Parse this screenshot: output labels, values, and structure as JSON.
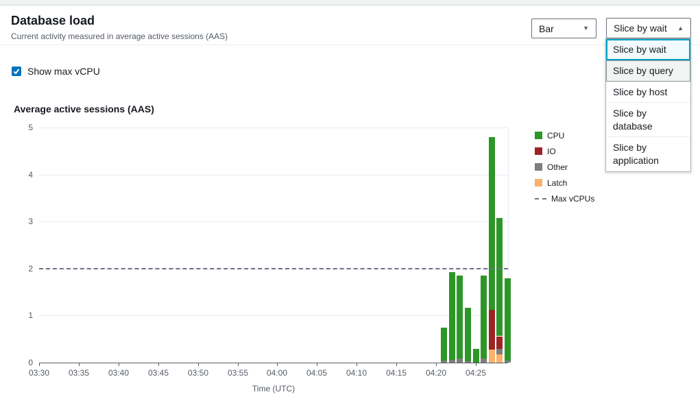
{
  "header": {
    "title": "Database load",
    "subtitle": "Current activity measured in average active sessions (AAS)"
  },
  "controls": {
    "chart_type_select": {
      "value": "Bar",
      "arrow": "down"
    },
    "slice_by_select": {
      "value": "Slice by wait",
      "arrow": "up"
    },
    "slice_dropdown": {
      "options": [
        "Slice by wait",
        "Slice by query",
        "Slice by host",
        "Slice by database",
        "Slice by application"
      ],
      "selected_index": 0,
      "hovered_index": 1
    },
    "show_max_vcpu": {
      "label": "Show max vCPU",
      "checked": true
    }
  },
  "colors": {
    "CPU": "#2d9628",
    "IO": "#9d2424",
    "Other": "#7d7d7d",
    "Latch": "#fbb16a",
    "max_vcpu_line": "#6b7280",
    "checkbox_blue": "#0073bb",
    "selected_option_border": "#00a1c9"
  },
  "chart_data": {
    "type": "bar",
    "title": "Average active sessions (AAS)",
    "xlabel": "Time (UTC)",
    "ylabel": "",
    "ylim": [
      0,
      5
    ],
    "yticks": [
      0,
      1,
      2,
      3,
      4,
      5
    ],
    "xticks": [
      "03:30",
      "03:35",
      "03:40",
      "03:45",
      "03:50",
      "03:55",
      "04:00",
      "04:05",
      "04:10",
      "04:15",
      "04:20",
      "04:25"
    ],
    "x_start": "03:30",
    "x_end": "04:29",
    "grid": true,
    "legend_position": "right",
    "max_vcpus": 2,
    "stack_order": [
      "Latch",
      "Other",
      "IO",
      "CPU"
    ],
    "legend": [
      {
        "label": "CPU",
        "type": "swatch",
        "color": "#2d9628"
      },
      {
        "label": "IO",
        "type": "swatch",
        "color": "#9d2424"
      },
      {
        "label": "Other",
        "type": "swatch",
        "color": "#7d7d7d"
      },
      {
        "label": "Latch",
        "type": "swatch",
        "color": "#fbb16a"
      },
      {
        "label": "Max vCPUs",
        "type": "dashed-line",
        "color": "#6b7280"
      }
    ],
    "series": [
      {
        "time": "04:21",
        "CPU": 0.7,
        "IO": 0,
        "Other": 0.04,
        "Latch": 0
      },
      {
        "time": "04:22",
        "CPU": 1.87,
        "IO": 0,
        "Other": 0.06,
        "Latch": 0
      },
      {
        "time": "04:23",
        "CPU": 1.76,
        "IO": 0,
        "Other": 0.09,
        "Latch": 0
      },
      {
        "time": "04:24",
        "CPU": 1.13,
        "IO": 0,
        "Other": 0.03,
        "Latch": 0
      },
      {
        "time": "04:25",
        "CPU": 0.29,
        "IO": 0,
        "Other": 0,
        "Latch": 0
      },
      {
        "time": "04:26",
        "CPU": 1.76,
        "IO": 0,
        "Other": 0.09,
        "Latch": 0
      },
      {
        "time": "04:27",
        "CPU": 3.68,
        "IO": 0.84,
        "Other": 0,
        "Latch": 0.28
      },
      {
        "time": "04:28",
        "CPU": 2.51,
        "IO": 0.26,
        "Other": 0.13,
        "Latch": 0.17
      },
      {
        "time": "04:29",
        "CPU": 1.75,
        "IO": 0,
        "Other": 0.04,
        "Latch": 0
      }
    ]
  }
}
